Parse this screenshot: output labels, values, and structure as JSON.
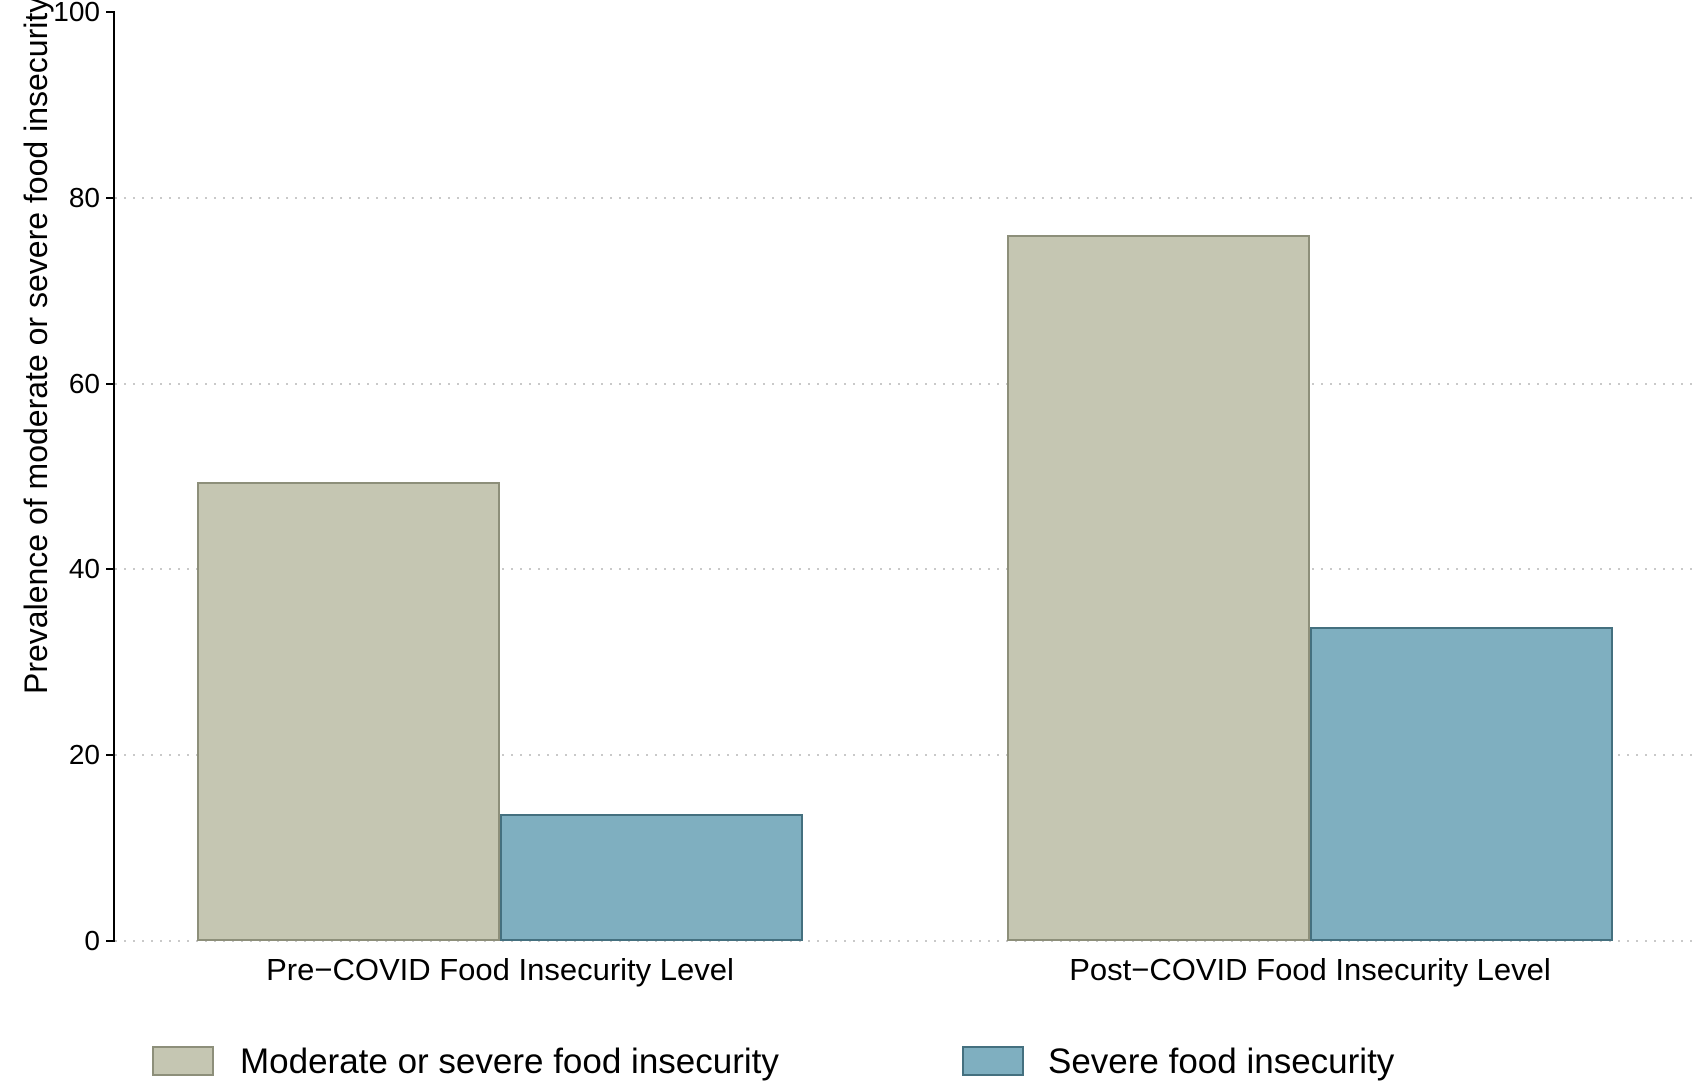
{
  "chart_data": {
    "type": "bar",
    "title": "",
    "ylabel": "Prevalence of moderate or severe food insecurity",
    "xlabel": "",
    "ylim": [
      0,
      100
    ],
    "yticks": [
      0,
      20,
      40,
      60,
      80,
      100
    ],
    "yticklabels": [
      "0",
      "20",
      "40",
      "60",
      "80",
      "100"
    ],
    "gridlines_at": [
      0,
      20,
      40,
      60,
      80
    ],
    "grid_style": "dotted horizontal",
    "legend_position": "bottom",
    "categories": [
      "Pre−COVID Food Insecurity Level",
      "Post−COVID Food Insecurity Level"
    ],
    "series": [
      {
        "name": "Moderate or severe food insecurity",
        "values": [
          49.4,
          76.0
        ],
        "fill": "#c5c6b2",
        "border": "#8d8f7a"
      },
      {
        "name": "Severe food insecurity",
        "values": [
          13.7,
          33.8
        ],
        "fill": "#7fafc0",
        "border": "#44707f"
      }
    ]
  },
  "colors": {
    "background": "#ffffff",
    "axis": "#000000",
    "gridline": "#c9c9c9"
  }
}
